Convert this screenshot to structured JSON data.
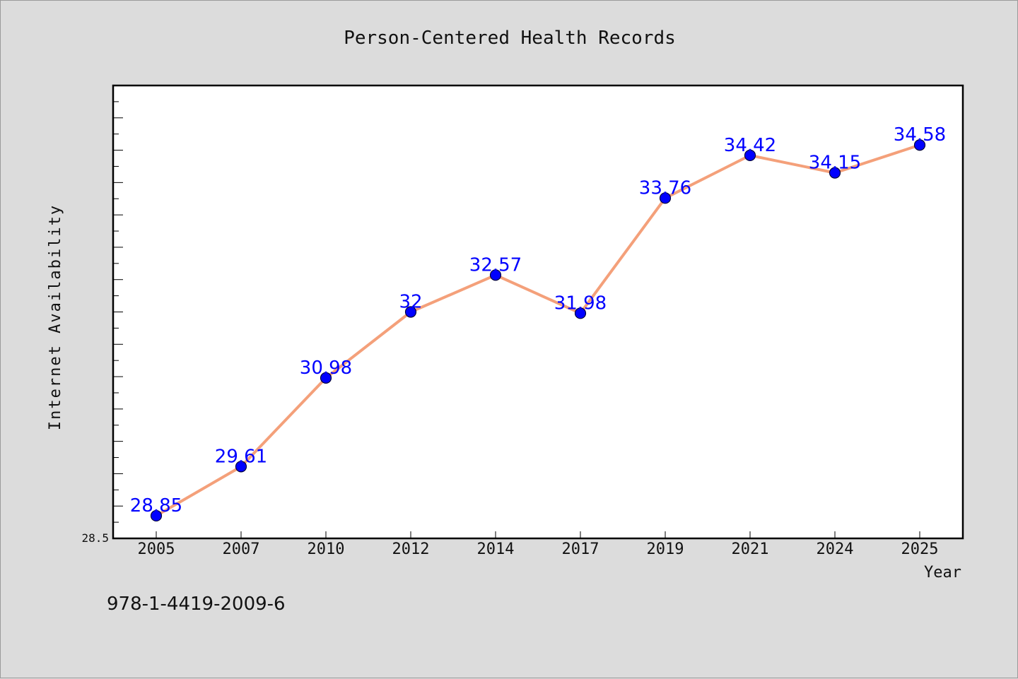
{
  "chart_data": {
    "type": "line",
    "title": "Person-Centered Health Records",
    "xlabel": "Year",
    "ylabel": "Internet Availability",
    "categories": [
      "2005",
      "2007",
      "2010",
      "2012",
      "2014",
      "2017",
      "2019",
      "2021",
      "2024",
      "2025"
    ],
    "series": [
      {
        "values": [
          28.85,
          29.61,
          30.98,
          32,
          32.57,
          31.98,
          33.76,
          34.42,
          34.15,
          34.58
        ],
        "data_labels": [
          "28.85",
          "29.61",
          "30.98",
          "32",
          "32.57",
          "31.98",
          "33.76",
          "34.42",
          "34.15",
          "34.58"
        ],
        "line_color": "#f4a07a",
        "marker_color": "#0000ff"
      }
    ],
    "ylim": [
      28.5,
      35.5
    ],
    "yticks_labeled": [
      "28.5"
    ],
    "grid": false,
    "legend": "none"
  },
  "footer": {
    "isbn": "978-1-4419-2009-6"
  }
}
